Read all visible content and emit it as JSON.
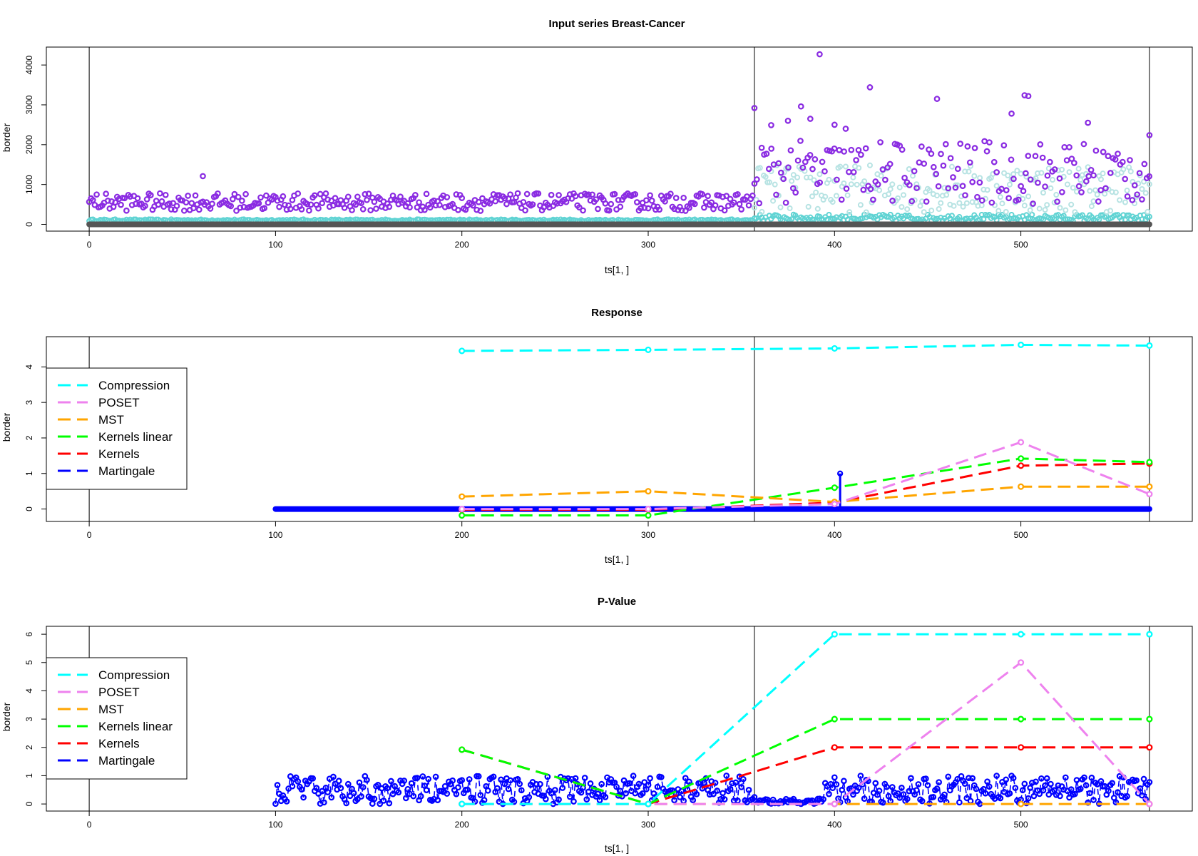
{
  "chart_data": [
    {
      "type": "scatter",
      "title": "Input series Breast-Cancer",
      "xlabel": "ts[1, ]",
      "ylabel": "border",
      "xlim": [
        -23,
        592
      ],
      "ylim": [
        -170,
        4450
      ],
      "xticks": [
        0,
        100,
        200,
        300,
        400,
        500
      ],
      "yticks": [
        0,
        1000,
        2000,
        3000,
        4000
      ],
      "vlines": [
        0,
        357,
        569
      ],
      "series_colors": {
        "purple": "#8a2be2",
        "lightblue": "#b7e3e3",
        "cyan": "#5fd3d3",
        "dark": "#555555"
      },
      "segments": [
        {
          "name": "",
          "x_range": [
            0,
            356
          ],
          "base": 560,
          "spread": 220,
          "color": "#8a2be2"
        },
        {
          "name": "",
          "x_range": [
            357,
            569
          ],
          "base": 1300,
          "spread": 800,
          "color": "#8a2be2"
        },
        {
          "name": "",
          "x_range": [
            357,
            569
          ],
          "base": 900,
          "spread": 600,
          "color": "#b7e3e3"
        }
      ],
      "highlight_points": [
        {
          "x": 61,
          "y": 1210
        },
        {
          "x": 357,
          "y": 2920
        },
        {
          "x": 366,
          "y": 2490
        },
        {
          "x": 375,
          "y": 2600
        },
        {
          "x": 382,
          "y": 2960
        },
        {
          "x": 387,
          "y": 2650
        },
        {
          "x": 392,
          "y": 4270
        },
        {
          "x": 400,
          "y": 2500
        },
        {
          "x": 406,
          "y": 2400
        },
        {
          "x": 419,
          "y": 3440
        },
        {
          "x": 455,
          "y": 3150
        },
        {
          "x": 495,
          "y": 2780
        },
        {
          "x": 502,
          "y": 3240
        },
        {
          "x": 504,
          "y": 3220
        },
        {
          "x": 536,
          "y": 2550
        },
        {
          "x": 569,
          "y": 2240
        }
      ]
    },
    {
      "type": "line",
      "title": "Response",
      "xlabel": "ts[1, ]",
      "ylabel": "border",
      "xlim": [
        -23,
        592
      ],
      "ylim": [
        -0.35,
        4.85
      ],
      "xticks": [
        0,
        100,
        200,
        300,
        400,
        500
      ],
      "yticks": [
        0,
        1,
        2,
        3,
        4
      ],
      "vlines": [
        0,
        357,
        569
      ],
      "legend_position": "left",
      "series": [
        {
          "name": "Compression",
          "color": "#00ffff",
          "x": [
            200,
            300,
            400,
            500,
            569
          ],
          "values": [
            4.45,
            4.48,
            4.52,
            4.62,
            4.6
          ]
        },
        {
          "name": "POSET",
          "color": "#ee82ee",
          "x": [
            200,
            300,
            400,
            500,
            569
          ],
          "values": [
            0.0,
            0.0,
            0.14,
            1.88,
            0.42
          ]
        },
        {
          "name": "MST",
          "color": "#ffa500",
          "x": [
            200,
            300,
            400,
            500,
            569
          ],
          "values": [
            0.35,
            0.5,
            0.2,
            0.63,
            0.63
          ]
        },
        {
          "name": "Kernels linear",
          "color": "#00ff00",
          "x": [
            200,
            300,
            400,
            500,
            569
          ],
          "values": [
            -0.18,
            -0.18,
            0.6,
            1.42,
            1.32
          ]
        },
        {
          "name": "Kernels",
          "color": "#ff0000",
          "x": [
            200,
            300,
            400,
            500,
            569
          ],
          "values": [
            -0.02,
            -0.02,
            0.18,
            1.22,
            1.28
          ]
        },
        {
          "name": "Martingale",
          "color": "#0000ff",
          "x_range": [
            100,
            569
          ],
          "value": 0.0,
          "spike": {
            "x": 403,
            "y": 1.0
          }
        }
      ]
    },
    {
      "type": "line",
      "title": "P-Value",
      "xlabel": "ts[1, ]",
      "ylabel": "border",
      "xlim": [
        -23,
        592
      ],
      "ylim": [
        -0.25,
        6.28
      ],
      "xticks": [
        0,
        100,
        200,
        300,
        400,
        500
      ],
      "yticks": [
        0,
        1,
        2,
        3,
        4,
        5,
        6
      ],
      "vlines": [
        0,
        357,
        569
      ],
      "legend_position": "left",
      "series": [
        {
          "name": "Compression",
          "color": "#00ffff",
          "x": [
            200,
            300,
            400,
            500,
            569
          ],
          "values": [
            0,
            0,
            6,
            6,
            6
          ]
        },
        {
          "name": "POSET",
          "color": "#ee82ee",
          "x": [
            200,
            300,
            400,
            500,
            569
          ],
          "values": [
            0,
            0,
            0,
            5,
            0
          ]
        },
        {
          "name": "MST",
          "color": "#ffa500",
          "x": [
            200,
            300,
            400,
            500,
            569
          ],
          "values": [
            0,
            0,
            0,
            0,
            0
          ]
        },
        {
          "name": "Kernels linear",
          "color": "#00ff00",
          "x": [
            200,
            300,
            400,
            500,
            569
          ],
          "values": [
            1.92,
            0,
            3,
            3,
            3
          ]
        },
        {
          "name": "Kernels",
          "color": "#ff0000",
          "x": [
            200,
            300,
            400,
            500,
            569
          ],
          "values": [
            1.92,
            0,
            2,
            2,
            2
          ]
        },
        {
          "name": "Martingale",
          "color": "#0000ff",
          "x_range": [
            100,
            569
          ],
          "value_range": [
            0,
            1
          ]
        }
      ]
    }
  ]
}
